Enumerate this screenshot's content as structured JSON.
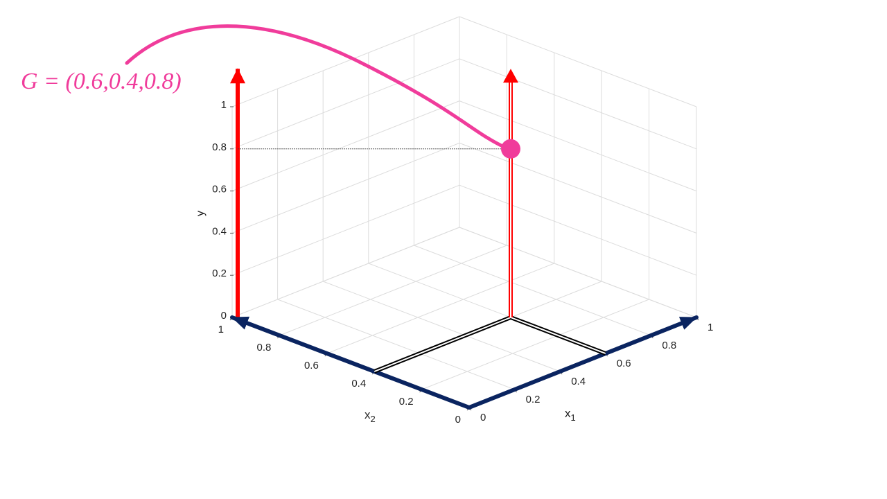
{
  "chart_data": {
    "type": "scatter3d",
    "annotation": "G = (0.6,0.4,0.8)",
    "point": {
      "x1": 0.6,
      "x2": 0.4,
      "y": 0.8
    },
    "x1label": {
      "base": "x",
      "sub": "1"
    },
    "x2label": {
      "base": "x",
      "sub": "2"
    },
    "ylabel": "y",
    "x1lim": [
      0,
      1
    ],
    "x2lim": [
      0,
      1
    ],
    "ylim": [
      0,
      1
    ],
    "x1ticks": [
      0,
      0.2,
      0.4,
      0.6,
      0.8,
      1
    ],
    "x2ticks": [
      0,
      0.2,
      0.4,
      0.6,
      0.8,
      1
    ],
    "yticks": [
      0,
      0.2,
      0.4,
      0.6,
      0.8,
      1
    ],
    "grid": true,
    "axis_color": "#0a2460",
    "arrow_color": "#ff0000",
    "point_color": "#f03c9b"
  }
}
